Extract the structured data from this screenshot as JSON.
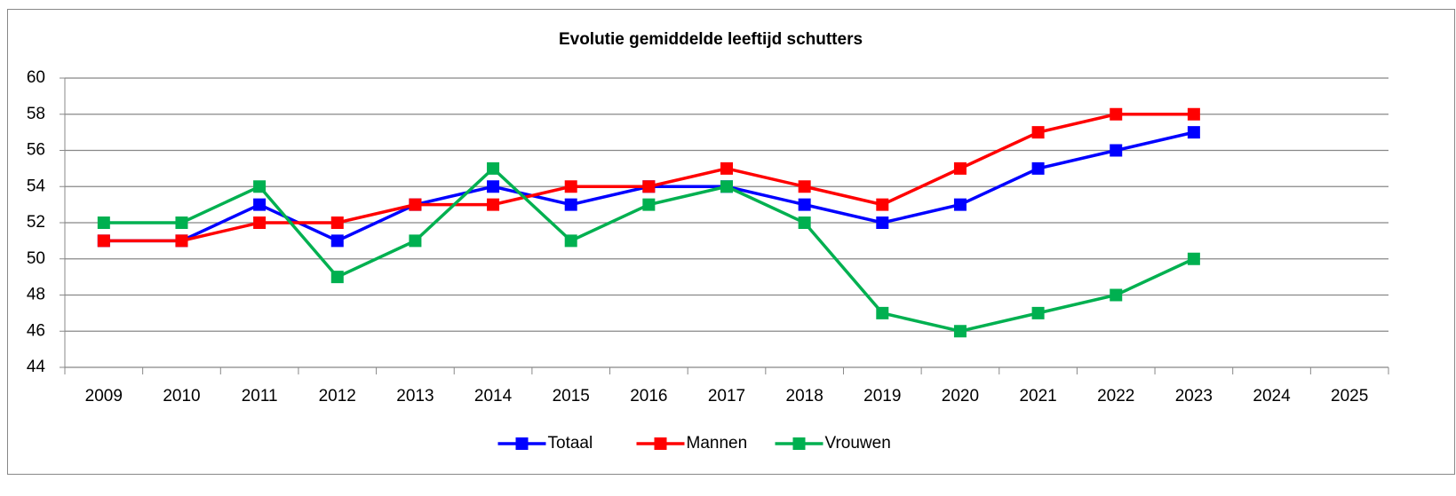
{
  "chart_data": {
    "type": "line",
    "title": "Evolutie gemiddelde leeftijd schutters",
    "categories": [
      "2009",
      "2010",
      "2011",
      "2012",
      "2013",
      "2014",
      "2015",
      "2016",
      "2017",
      "2018",
      "2019",
      "2020",
      "2021",
      "2022",
      "2023",
      "2024",
      "2025"
    ],
    "series": [
      {
        "name": "Totaal",
        "color": "#0000ff",
        "values": [
          51,
          51,
          53,
          51,
          53,
          54,
          53,
          54,
          54,
          53,
          52,
          53,
          55,
          56,
          57,
          null,
          null
        ]
      },
      {
        "name": "Mannen",
        "color": "#ff0000",
        "values": [
          51,
          51,
          52,
          52,
          53,
          53,
          54,
          54,
          55,
          54,
          53,
          55,
          57,
          58,
          58,
          null,
          null
        ]
      },
      {
        "name": "Vrouwen",
        "color": "#00b050",
        "values": [
          52,
          52,
          54,
          49,
          51,
          55,
          51,
          53,
          54,
          52,
          47,
          46,
          47,
          48,
          50,
          null,
          null
        ]
      }
    ],
    "ylim": [
      44,
      60
    ],
    "yticks": [
      44,
      46,
      48,
      50,
      52,
      54,
      56,
      58,
      60
    ],
    "grid": true,
    "legend": "bottom"
  }
}
